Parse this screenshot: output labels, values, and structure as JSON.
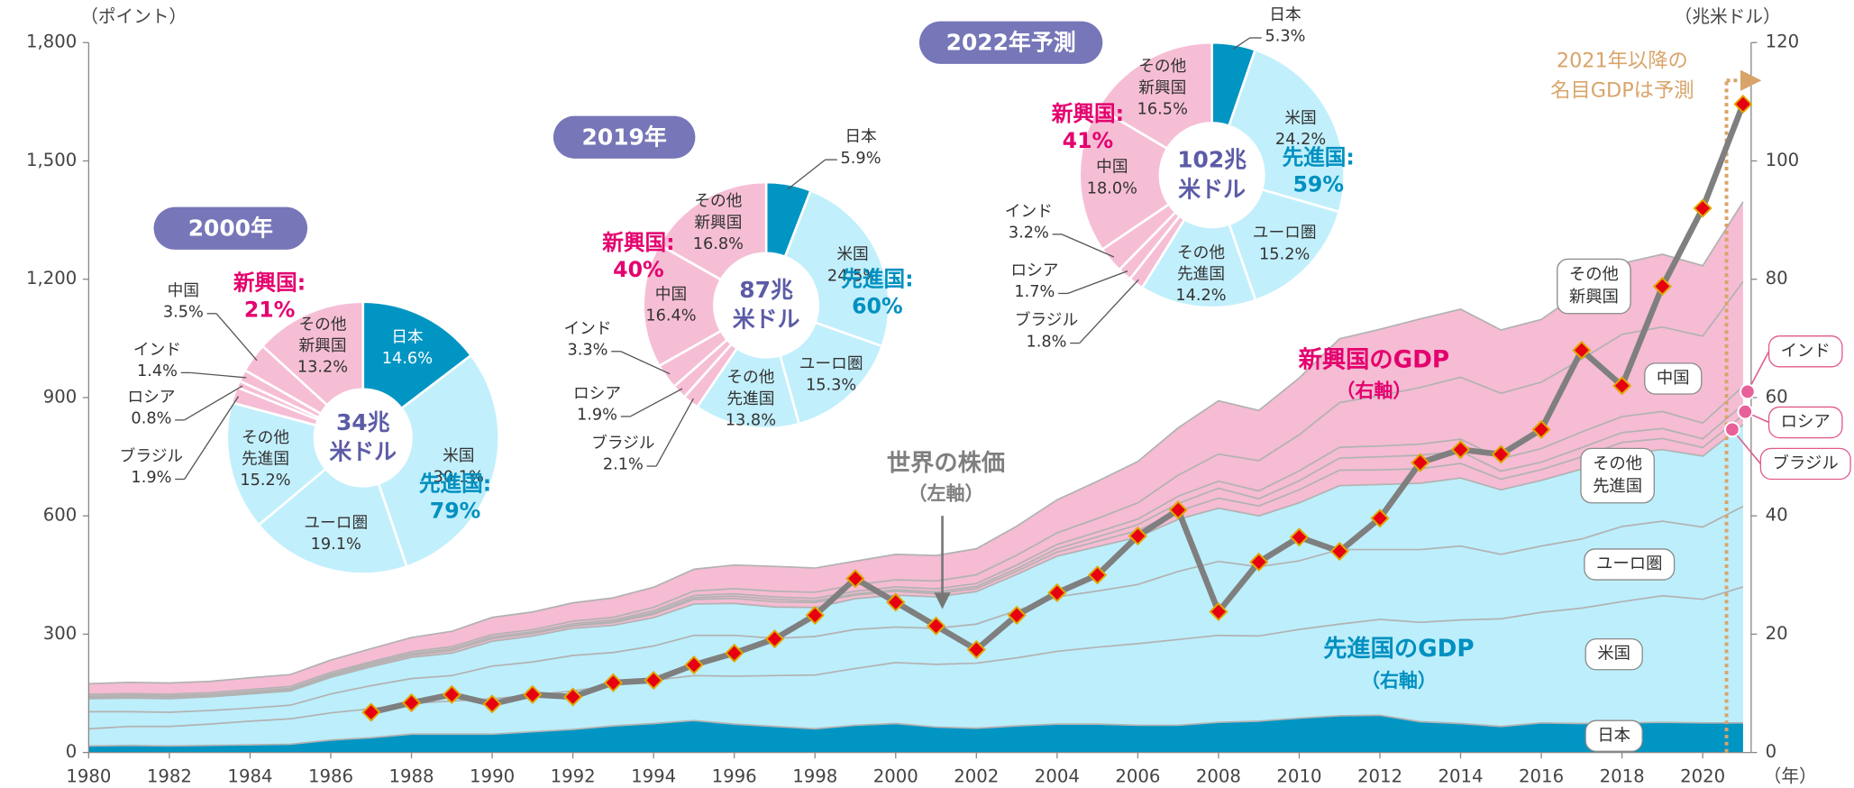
{
  "chart_data": [
    {
      "type": "stacked_area_line",
      "x": [
        1980,
        1981,
        1982,
        1983,
        1984,
        1985,
        1986,
        1987,
        1988,
        1989,
        1990,
        1991,
        1992,
        1993,
        1994,
        1995,
        1996,
        1997,
        1998,
        1999,
        2000,
        2001,
        2002,
        2003,
        2004,
        2005,
        2006,
        2007,
        2008,
        2009,
        2010,
        2011,
        2012,
        2013,
        2014,
        2015,
        2016,
        2017,
        2018,
        2019,
        2020,
        2021
      ],
      "xlim": [
        1980,
        2021.2
      ],
      "xticks": [
        1980,
        1982,
        1984,
        1986,
        1988,
        1990,
        1992,
        1994,
        1996,
        1998,
        2000,
        2002,
        2004,
        2006,
        2008,
        2010,
        2012,
        2014,
        2016,
        2018,
        2020
      ],
      "xlabel": "（年）",
      "ylim": [
        0,
        1800
      ],
      "yticks": [
        0,
        300,
        600,
        900,
        {
          "value": 1200,
          "label": "1,200"
        },
        {
          "value": 1500,
          "label": "1,500"
        },
        {
          "value": 1800,
          "label": "1,800"
        }
      ],
      "ylabel": "（ポイント）",
      "y2lim": [
        0,
        120
      ],
      "y2ticks": [
        0,
        20,
        40,
        60,
        80,
        100,
        120
      ],
      "y2label": "（兆米ドル）",
      "edge_color": "#b2b2b2",
      "series": [
        {
          "name": "日本",
          "axis": "y2",
          "color": "#0095c3",
          "values": [
            1.1,
            1.2,
            1.1,
            1.2,
            1.3,
            1.4,
            2.1,
            2.5,
            3.1,
            3.1,
            3.1,
            3.5,
            3.9,
            4.5,
            4.9,
            5.4,
            4.8,
            4.4,
            4.0,
            4.6,
            4.9,
            4.3,
            4.1,
            4.5,
            4.8,
            4.8,
            4.6,
            4.6,
            5.1,
            5.3,
            5.8,
            6.2,
            6.3,
            5.2,
            4.9,
            4.4,
            5.0,
            4.9,
            5.0,
            5.1,
            5.0,
            5.0
          ]
        },
        {
          "name": "米国",
          "axis": "y2",
          "color": "#bdeefb",
          "values": [
            2.9,
            3.2,
            3.3,
            3.6,
            4.0,
            4.3,
            4.6,
            4.9,
            5.2,
            5.6,
            6.0,
            6.2,
            6.5,
            6.9,
            7.3,
            7.6,
            8.1,
            8.6,
            9.1,
            9.6,
            10.3,
            10.6,
            11.0,
            11.5,
            12.3,
            13.0,
            13.8,
            14.5,
            14.7,
            14.4,
            15.0,
            15.5,
            16.2,
            16.8,
            17.5,
            18.2,
            18.7,
            19.5,
            20.5,
            21.4,
            20.9,
            23.0
          ]
        },
        {
          "name": "ユーロ圏",
          "axis": "y2",
          "color": "#bdeefb",
          "values": [
            2.9,
            2.5,
            2.4,
            2.3,
            2.2,
            2.3,
            3.2,
            3.9,
            4.2,
            4.3,
            5.5,
            5.6,
            6.0,
            5.5,
            5.8,
            6.8,
            6.9,
            6.3,
            6.5,
            6.6,
            6.0,
            6.1,
            6.6,
            8.0,
            9.2,
            9.5,
            10.0,
            11.5,
            12.5,
            11.7,
            11.6,
            12.6,
            11.8,
            12.3,
            12.5,
            10.9,
            11.2,
            11.7,
            12.7,
            12.6,
            12.2,
            13.6
          ]
        },
        {
          "name": "その他先進国",
          "axis": "y2",
          "color": "#bdeefb",
          "values": [
            2.2,
            2.3,
            2.3,
            2.3,
            2.4,
            2.4,
            2.8,
            3.2,
            3.6,
            3.8,
            4.2,
            4.4,
            4.6,
            4.6,
            4.8,
            5.3,
            5.4,
            5.3,
            4.9,
            5.2,
            5.4,
            5.3,
            5.5,
            6.1,
            6.9,
            7.5,
            8.0,
            8.8,
            9.0,
            8.6,
            9.8,
            10.8,
            11.0,
            11.2,
            11.5,
            10.9,
            11.1,
            11.8,
            12.3,
            12.1,
            12.0,
            13.8
          ]
        },
        {
          "name": "ブラジル",
          "axis": "y2",
          "color": "#f5bcd3",
          "values": [
            0.24,
            0.26,
            0.28,
            0.2,
            0.2,
            0.22,
            0.27,
            0.3,
            0.33,
            0.44,
            0.46,
            0.41,
            0.39,
            0.44,
            0.56,
            0.77,
            0.85,
            0.88,
            0.86,
            0.6,
            0.65,
            0.56,
            0.51,
            0.56,
            0.67,
            0.89,
            1.11,
            1.4,
            1.7,
            1.67,
            2.21,
            2.62,
            2.47,
            2.47,
            2.46,
            1.8,
            1.8,
            2.06,
            1.92,
            1.88,
            1.45,
            1.61
          ]
        },
        {
          "name": "ロシア",
          "axis": "y2",
          "color": "#f5bcd3",
          "values": [
            0,
            0,
            0,
            0,
            0,
            0,
            0,
            0,
            0,
            0,
            0,
            0,
            0.09,
            0.18,
            0.28,
            0.31,
            0.39,
            0.4,
            0.27,
            0.2,
            0.26,
            0.31,
            0.35,
            0.43,
            0.59,
            0.76,
            0.99,
            1.3,
            1.66,
            1.22,
            1.52,
            2.05,
            2.21,
            2.29,
            2.06,
            1.36,
            1.28,
            1.57,
            1.66,
            1.69,
            1.48,
            1.78
          ]
        },
        {
          "name": "インド",
          "axis": "y2",
          "color": "#f5bcd3",
          "values": [
            0.19,
            0.2,
            0.2,
            0.22,
            0.22,
            0.24,
            0.26,
            0.28,
            0.3,
            0.3,
            0.32,
            0.27,
            0.29,
            0.28,
            0.33,
            0.37,
            0.39,
            0.42,
            0.42,
            0.46,
            0.47,
            0.49,
            0.51,
            0.6,
            0.7,
            0.82,
            0.94,
            1.22,
            1.2,
            1.34,
            1.68,
            1.82,
            1.83,
            1.86,
            2.04,
            2.1,
            2.29,
            2.65,
            2.7,
            2.87,
            2.66,
            3.1
          ]
        },
        {
          "name": "中国",
          "axis": "y2",
          "color": "#f5bcd3",
          "values": [
            0.3,
            0.29,
            0.28,
            0.3,
            0.31,
            0.31,
            0.3,
            0.27,
            0.31,
            0.35,
            0.36,
            0.38,
            0.43,
            0.44,
            0.56,
            0.73,
            0.86,
            0.96,
            1.03,
            1.09,
            1.21,
            1.34,
            1.47,
            1.66,
            1.96,
            2.29,
            2.75,
            3.55,
            4.59,
            5.1,
            6.09,
            7.55,
            8.53,
            9.57,
            10.48,
            11.06,
            11.23,
            12.31,
            13.89,
            14.28,
            14.69,
            17.7
          ]
        },
        {
          "name": "その他新興国",
          "axis": "y2",
          "color": "#f5bcd3",
          "values": [
            1.8,
            1.9,
            1.9,
            1.9,
            2.0,
            2.0,
            2.1,
            2.2,
            2.4,
            2.6,
            2.9,
            3.0,
            3.1,
            3.3,
            3.4,
            3.7,
            4.0,
            4.2,
            4.1,
            4.0,
            4.3,
            4.3,
            4.4,
            4.9,
            5.6,
            6.3,
            7.0,
            8.0,
            9.0,
            8.5,
            9.6,
            10.8,
            11.2,
            11.6,
            11.5,
            10.7,
            10.6,
            11.5,
            12.0,
            12.3,
            11.9,
            13.5
          ]
        },
        {
          "name": "世界の株価",
          "type": "line",
          "axis": "y",
          "color": "#7f7f7f",
          "marker_color": "#e60012",
          "marker_edge": "#e0a800",
          "values": [
            null,
            null,
            null,
            null,
            null,
            null,
            null,
            102,
            126,
            147,
            123,
            147,
            141,
            177,
            183,
            222,
            252,
            288,
            348,
            441,
            381,
            321,
            261,
            348,
            405,
            450,
            549,
            615,
            357,
            483,
            546,
            510,
            594,
            735,
            768,
            756,
            819,
            1020,
            930,
            1182,
            1380,
            1644
          ]
        }
      ],
      "annotations": [
        {
          "text": "世界の株価",
          "sub": "（左軸）",
          "color": "#7f7f7f"
        },
        {
          "text": "新興国のGDP",
          "sub": "（右軸）",
          "color": "#e4006e"
        },
        {
          "text": "先進国のGDP",
          "sub": "（右軸）",
          "color": "#0090c0"
        }
      ],
      "forecast_x": 2021,
      "forecast_note": [
        "2021年以降の",
        "名目GDPは予測"
      ],
      "forecast_color": "#d9a46a"
    },
    {
      "type": "pie",
      "title": "2000年",
      "center": [
        "34兆",
        "米ドル"
      ],
      "categories": [
        "日本",
        "米国",
        "ユーロ圏",
        "その他先進国",
        "ブラジル",
        "ロシア",
        "インド",
        "中国",
        "その他新興国"
      ],
      "values": [
        14.6,
        30.1,
        19.1,
        15.2,
        1.9,
        0.8,
        1.4,
        3.5,
        13.2
      ],
      "value_labels": [
        "14.6%",
        "30.1%",
        "19.1%",
        "15.2%",
        "1.9%",
        "0.8%",
        "1.4%",
        "3.5%",
        "13.2%"
      ],
      "colors": [
        "#0095c3",
        "#c2effc",
        "#c2effc",
        "#c2effc",
        "#f6bed5",
        "#f6bed5",
        "#f6bed5",
        "#f6bed5",
        "#f6bed5"
      ],
      "groups": [
        {
          "name": "先進国:",
          "value": 79,
          "value_label": "79%",
          "color": "#0090c0"
        },
        {
          "name": "新興国:",
          "value": 21,
          "value_label": "21%",
          "color": "#e4006e"
        }
      ]
    },
    {
      "type": "pie",
      "title": "2019年",
      "center": [
        "87兆",
        "米ドル"
      ],
      "categories": [
        "日本",
        "米国",
        "ユーロ圏",
        "その他先進国",
        "ブラジル",
        "ロシア",
        "インド",
        "中国",
        "その他新興国"
      ],
      "values": [
        5.9,
        24.5,
        15.3,
        13.8,
        2.1,
        1.9,
        3.3,
        16.4,
        16.8
      ],
      "value_labels": [
        "5.9%",
        "24.5%",
        "15.3%",
        "13.8%",
        "2.1%",
        "1.9%",
        "3.3%",
        "16.4%",
        "16.8%"
      ],
      "colors": [
        "#0095c3",
        "#c2effc",
        "#c2effc",
        "#c2effc",
        "#f6bed5",
        "#f6bed5",
        "#f6bed5",
        "#f6bed5",
        "#f6bed5"
      ],
      "groups": [
        {
          "name": "先進国:",
          "value": 60,
          "value_label": "60%",
          "color": "#0090c0"
        },
        {
          "name": "新興国:",
          "value": 40,
          "value_label": "40%",
          "color": "#e4006e"
        }
      ]
    },
    {
      "type": "pie",
      "title": "2022年予測",
      "center": [
        "102兆",
        "米ドル"
      ],
      "categories": [
        "日本",
        "米国",
        "ユーロ圏",
        "その他先進国",
        "ブラジル",
        "ロシア",
        "インド",
        "中国",
        "その他新興国"
      ],
      "values": [
        5.3,
        24.2,
        15.2,
        14.2,
        1.8,
        1.7,
        3.2,
        18.0,
        16.5
      ],
      "value_labels": [
        "5.3%",
        "24.2%",
        "15.2%",
        "14.2%",
        "1.8%",
        "1.7%",
        "3.2%",
        "18.0%",
        "16.5%"
      ],
      "colors": [
        "#0095c3",
        "#c2effc",
        "#c2effc",
        "#c2effc",
        "#f6bed5",
        "#f6bed5",
        "#f6bed5",
        "#f6bed5",
        "#f6bed5"
      ],
      "groups": [
        {
          "name": "先進国:",
          "value": 59,
          "value_label": "59%",
          "color": "#0090c0"
        },
        {
          "name": "新興国:",
          "value": 41,
          "value_label": "41%",
          "color": "#e4006e"
        }
      ]
    }
  ]
}
